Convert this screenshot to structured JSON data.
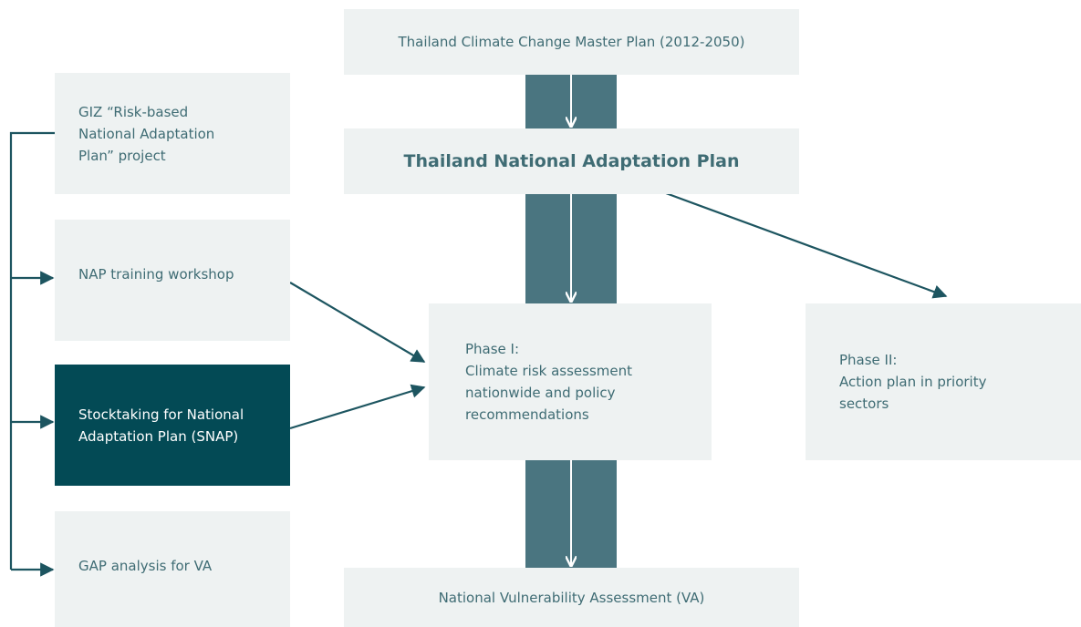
{
  "nodes": [
    {
      "id": "master",
      "lines": [
        "Thailand Climate Change Master Plan (2012-2050)"
      ]
    },
    {
      "id": "nap",
      "lines": [
        "Thailand National Adaptation Plan"
      ]
    },
    {
      "id": "phase1",
      "lines": [
        "Phase I:",
        "Climate risk assessment",
        "nationwide and policy",
        "recommendations"
      ]
    },
    {
      "id": "phase2",
      "lines": [
        "Phase II:",
        "Action plan in priority",
        "sectors"
      ]
    },
    {
      "id": "va",
      "lines": [
        "National Vulnerability Assessment (VA)"
      ]
    },
    {
      "id": "giz",
      "lines": [
        "GIZ “Risk-based",
        "National Adaptation",
        "Plan” project"
      ]
    },
    {
      "id": "training",
      "lines": [
        "NAP training workshop"
      ]
    },
    {
      "id": "snap",
      "lines": [
        "Stocktaking for National",
        "Adaptation Plan (SNAP)"
      ]
    },
    {
      "id": "gap",
      "lines": [
        "GAP analysis for VA"
      ]
    }
  ]
}
